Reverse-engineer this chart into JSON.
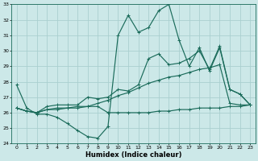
{
  "xlabel": "Humidex (Indice chaleur)",
  "xlim": [
    -0.5,
    23.5
  ],
  "ylim": [
    24,
    33
  ],
  "yticks": [
    24,
    25,
    26,
    27,
    28,
    29,
    30,
    31,
    32,
    33
  ],
  "xticks": [
    0,
    1,
    2,
    3,
    4,
    5,
    6,
    7,
    8,
    9,
    10,
    11,
    12,
    13,
    14,
    15,
    16,
    17,
    18,
    19,
    20,
    21,
    22,
    23
  ],
  "background_color": "#cce8e8",
  "grid_color": "#aacfcf",
  "line_color": "#1a6b5a",
  "series": [
    [
      27.8,
      26.3,
      25.9,
      25.9,
      25.7,
      25.3,
      24.85,
      24.45,
      24.35,
      25.1,
      31.0,
      32.3,
      31.2,
      31.5,
      32.6,
      33.0,
      30.7,
      29.0,
      30.2,
      28.7,
      30.2,
      27.5,
      27.2,
      26.5
    ],
    [
      26.3,
      26.1,
      26.0,
      26.4,
      26.5,
      26.5,
      26.5,
      27.0,
      26.9,
      27.0,
      27.5,
      27.4,
      27.8,
      29.5,
      29.8,
      29.1,
      29.2,
      29.5,
      30.0,
      28.8,
      30.3,
      27.5,
      27.2,
      26.5
    ],
    [
      26.3,
      26.1,
      26.0,
      26.2,
      26.2,
      26.3,
      26.3,
      26.4,
      26.4,
      26.0,
      26.0,
      26.0,
      26.0,
      26.0,
      26.1,
      26.1,
      26.2,
      26.2,
      26.3,
      26.3,
      26.3,
      26.4,
      26.4,
      26.5
    ],
    [
      26.3,
      26.1,
      26.0,
      26.2,
      26.3,
      26.3,
      26.4,
      26.4,
      26.6,
      26.8,
      27.1,
      27.3,
      27.6,
      27.9,
      28.1,
      28.3,
      28.4,
      28.6,
      28.8,
      28.9,
      29.1,
      26.6,
      26.5,
      26.5
    ]
  ],
  "marker_size": 2.5,
  "line_width": 0.85
}
